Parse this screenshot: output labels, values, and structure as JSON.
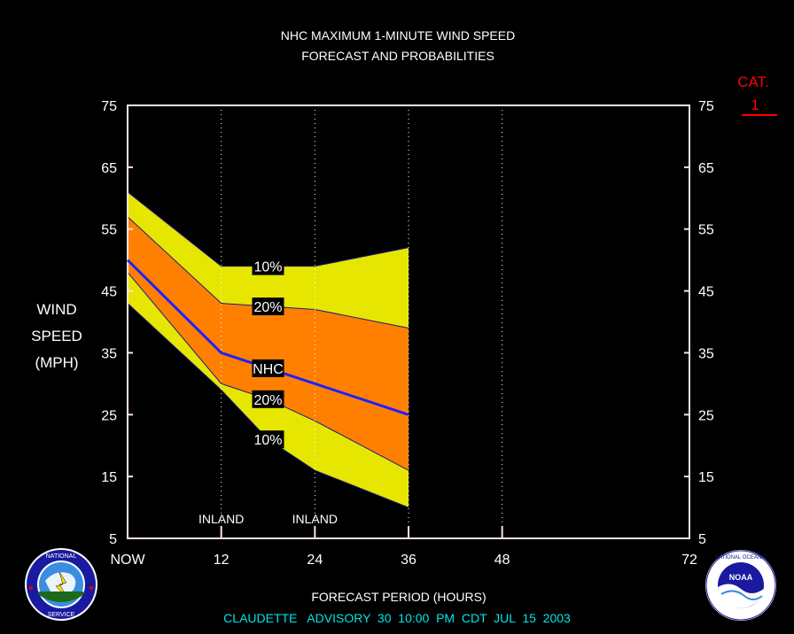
{
  "chart_data": {
    "type": "area",
    "title_line1": "NHC MAXIMUM 1-MINUTE WIND SPEED",
    "title_line2": "FORECAST AND PROBABILITIES",
    "ylabel_lines": [
      "WIND",
      "SPEED",
      "(MPH)"
    ],
    "xlabel": "FORECAST PERIOD (HOURS)",
    "footer": "CLAUDETTE   ADVISORY  30  10:00  PM  CDT  JUL  15  2003",
    "category_label": "CAT.",
    "category_value": "1",
    "category_threshold_mph": 74,
    "ylim": [
      5,
      75
    ],
    "xlim": [
      0,
      72
    ],
    "y_ticks": [
      5,
      15,
      25,
      35,
      45,
      55,
      65,
      75
    ],
    "x_ticks": [
      {
        "x": 0,
        "label": "NOW"
      },
      {
        "x": 12,
        "label": "12"
      },
      {
        "x": 24,
        "label": "24"
      },
      {
        "x": 36,
        "label": "36"
      },
      {
        "x": 48,
        "label": "48"
      },
      {
        "x": 72,
        "label": "72"
      }
    ],
    "vertical_gridlines": [
      12,
      24,
      36,
      48
    ],
    "annotations": [
      {
        "text": "INLAND",
        "x": 12
      },
      {
        "text": "INLAND",
        "x": 24
      }
    ],
    "x": [
      0,
      12,
      18,
      24,
      36
    ],
    "series": [
      {
        "name": "10%",
        "role": "upper-outer",
        "values": [
          61,
          49,
          49,
          49,
          52
        ]
      },
      {
        "name": "20%",
        "role": "upper-inner",
        "values": [
          57,
          43,
          42.5,
          42,
          39
        ]
      },
      {
        "name": "NHC",
        "role": "forecast",
        "values": [
          50,
          35,
          32.5,
          30,
          25
        ]
      },
      {
        "name": "20%",
        "role": "lower-inner",
        "values": [
          48,
          30,
          27.5,
          24,
          16
        ]
      },
      {
        "name": "10%",
        "role": "lower-outer",
        "values": [
          43,
          29,
          21,
          16,
          10
        ]
      }
    ],
    "series_labels": [
      {
        "text": "10%",
        "series": 0,
        "x": 18
      },
      {
        "text": "20%",
        "series": 1,
        "x": 18
      },
      {
        "text": "NHC",
        "series": 2,
        "x": 18
      },
      {
        "text": "20%",
        "series": 3,
        "x": 18
      },
      {
        "text": "10%",
        "series": 4,
        "x": 18
      }
    ],
    "colors": {
      "outer_band": "#e6e600",
      "inner_band": "#ff8000",
      "forecast_line": "#2020ff",
      "axis": "#ffe0e0",
      "category": "#ff0000",
      "footer": "#00e5e5",
      "background": "#000000"
    }
  },
  "logos": {
    "left": {
      "icon": "nws-logo",
      "text": "NATIONAL WEATHER SERVICE"
    },
    "right": {
      "icon": "noaa-logo",
      "text": "NOAA"
    }
  }
}
